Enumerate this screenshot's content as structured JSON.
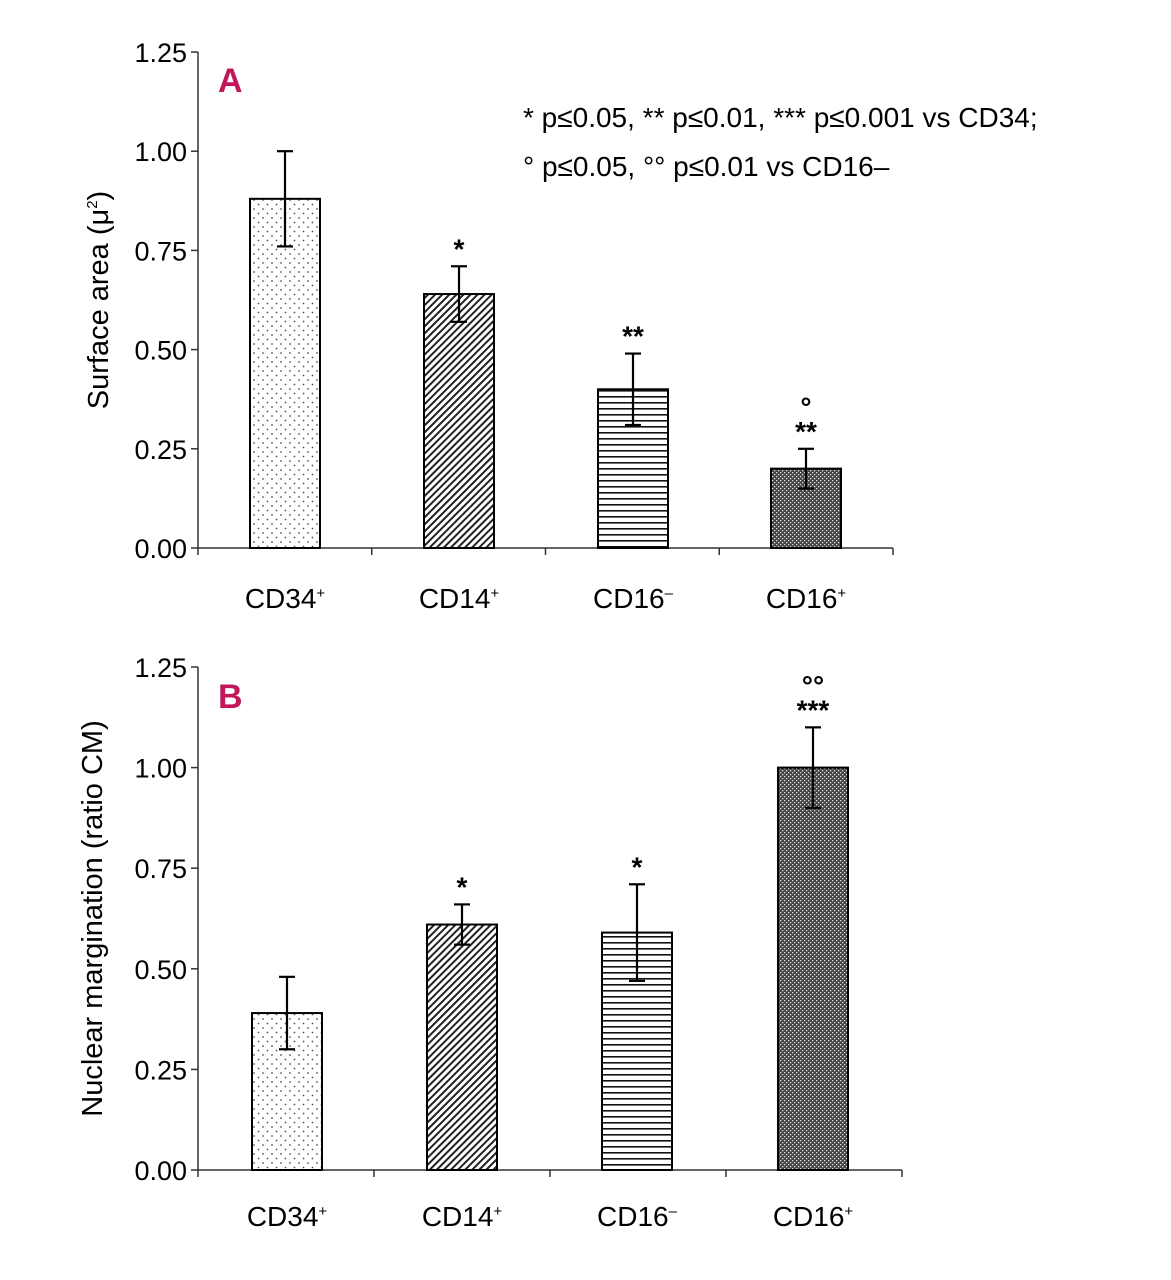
{
  "figure_note": {
    "line1": "* p≤0.05, ** p≤0.01, *** p≤0.001  vs CD34;",
    "line2": "° p≤0.05, °° p≤0.01 vs CD16–"
  },
  "colors": {
    "panel_label": "#c2185b",
    "axis": "#333333",
    "bar_outline": "#000000"
  },
  "chart_data": [
    {
      "type": "bar",
      "panel_label": "A",
      "title": "",
      "xlabel": "",
      "ylabel": "Surface area (μ",
      "ylabel_sup": "2",
      "ylabel_suffix": ")",
      "ylim": [
        0,
        1.25
      ],
      "yticks": [
        "0.00",
        "0.25",
        "0.50",
        "0.75",
        "1.00",
        "1.25"
      ],
      "categories": [
        "CD34",
        "CD14",
        "CD16",
        "CD16"
      ],
      "category_sups": [
        "+",
        "+",
        "–",
        "+"
      ],
      "values": [
        0.88,
        0.64,
        0.4,
        0.2
      ],
      "errors": [
        0.12,
        0.07,
        0.09,
        0.05
      ],
      "patterns": [
        "dots",
        "diagonal",
        "horizontal",
        "crosshatch"
      ],
      "significance": [
        [],
        [
          "*"
        ],
        [
          "**"
        ],
        [
          "°",
          "**"
        ]
      ]
    },
    {
      "type": "bar",
      "panel_label": "B",
      "title": "",
      "xlabel": "",
      "ylabel": "Nuclear margination (ratio CM)",
      "ylabel_sup": "",
      "ylabel_suffix": "",
      "ylim": [
        0,
        1.25
      ],
      "yticks": [
        "0.00",
        "0.25",
        "0.50",
        "0.75",
        "1.00",
        "1.25"
      ],
      "categories": [
        "CD34",
        "CD14",
        "CD16",
        "CD16"
      ],
      "category_sups": [
        "+",
        "+",
        "–",
        "+"
      ],
      "values": [
        0.39,
        0.61,
        0.59,
        1.0
      ],
      "errors": [
        0.09,
        0.05,
        0.12,
        0.1
      ],
      "patterns": [
        "dots",
        "diagonal",
        "horizontal",
        "crosshatch"
      ],
      "significance": [
        [],
        [
          "*"
        ],
        [
          "*"
        ],
        [
          "°°",
          "***"
        ]
      ]
    }
  ]
}
